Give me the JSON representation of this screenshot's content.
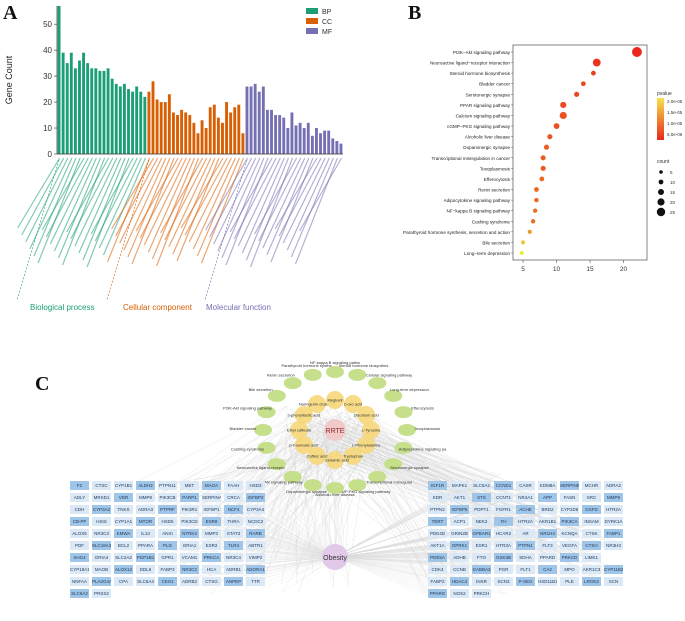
{
  "panels": {
    "a": "A",
    "b": "B",
    "c": "C"
  },
  "colors": {
    "bp": "#1b9e77",
    "cc": "#d95f02",
    "mf": "#7570b3",
    "compound": "#f6d77a",
    "pathway": "#c5df8a",
    "disease": "#e2c9ea",
    "gene_dark": "#9fc5e8",
    "gene_light": "#dbe9f7"
  },
  "chart_data": [
    {
      "type": "bar",
      "ylabel": "Gene Count",
      "ylim": [
        0,
        57
      ],
      "yticks": [
        0,
        10,
        20,
        30,
        40,
        50
      ],
      "legend_position": "top-right",
      "series": [
        {
          "name": "BP",
          "values": [
            57,
            39,
            35,
            39,
            33,
            36,
            39,
            35,
            33,
            33,
            32,
            32,
            33,
            29,
            27,
            26,
            27,
            25,
            24,
            26,
            24,
            22
          ]
        },
        {
          "name": "CC",
          "values": [
            24,
            28,
            21,
            20,
            20,
            23,
            16,
            15,
            17,
            16,
            15,
            12,
            8,
            13,
            10,
            18,
            19,
            14,
            12,
            20,
            16,
            18,
            19,
            8
          ]
        },
        {
          "name": "MF",
          "values": [
            26,
            26,
            27,
            24,
            26,
            17,
            17,
            15,
            15,
            14,
            10,
            16,
            11,
            12,
            10,
            12,
            7,
            10,
            8,
            9,
            9,
            6,
            5,
            4
          ]
        }
      ],
      "category_groups": [
        "Biological process",
        "Cellular component",
        "Molecular function"
      ]
    },
    {
      "type": "scatter",
      "x_ticks": [
        5,
        10,
        15,
        20
      ],
      "xlim": [
        3.5,
        23.5
      ],
      "categories": [
        "PI3K−Akt signaling pathway",
        "Neuroactive ligand−receptor interaction",
        "Steroid hormone biosynthesis",
        "Bladder cancer",
        "Serotonergic synapse",
        "PPAR signaling pathway",
        "Calcium signaling pathway",
        "cGMP−PKG signaling pathway",
        "Alcoholic liver disease",
        "Dopaminergic synapse",
        "Transcriptional misregulation in cancer",
        "Toxoplasmosis",
        "Efferocytosis",
        "Renin secretion",
        "Adipocytokine signaling pathway",
        "NF−kappa B signaling pathway",
        "Cushing syndrome",
        "Parathyroid hormone synthesis, secretion and action",
        "Bile secretion",
        "Long−term depression"
      ],
      "x": [
        22,
        16,
        15.5,
        14,
        13,
        11,
        11,
        10,
        9,
        8.5,
        8,
        8,
        7.8,
        7,
        7,
        6.8,
        6.5,
        6,
        5,
        4.8
      ],
      "size": [
        22,
        16,
        7,
        7,
        8,
        11,
        14,
        10,
        8,
        8,
        8,
        8,
        7,
        7,
        6,
        6,
        6,
        5,
        5,
        5
      ],
      "pvalue": [
        1e-06,
        2e-06,
        3e-06,
        4e-06,
        4e-06,
        4e-06,
        5e-06,
        5e-06,
        5e-06,
        6e-06,
        6e-06,
        6e-06,
        7e-06,
        7e-06,
        7e-06,
        8e-06,
        8e-06,
        1.2e-05,
        1.6e-05,
        2e-05
      ],
      "color_legend": {
        "title": "pvalue",
        "labels": [
          "2.0e-05",
          "1.5e-05",
          "1.0e-05",
          "5.0e-06"
        ]
      },
      "size_legend": {
        "title": "count",
        "labels": [
          "5",
          "10",
          "15",
          "20",
          "25"
        ]
      }
    }
  ],
  "panelA": {
    "legend": [
      {
        "key": "bp",
        "label": "BP"
      },
      {
        "key": "cc",
        "label": "CC"
      },
      {
        "key": "mf",
        "label": "MF"
      }
    ],
    "group_labels": [
      "Biological process",
      "Cellular component",
      "Molecular function"
    ]
  },
  "network": {
    "center_compound": "RRTE",
    "center_disease": "Obesity",
    "compounds": [
      "L-Tyrosine",
      "L-Phenylalanine",
      "Tryptophan",
      "L-Glutamic acid",
      "Caffeic acid",
      "p-Coumaric acid",
      "Ethyl caffeate",
      "3-phenyllactic acid",
      "Naringenin chalcone",
      "Megluidi",
      "2-oxo acid",
      "Disodium acid"
    ],
    "pathways": [
      "NF-kappa B signaling pathway",
      "Steroid hormone biosynthesis",
      "Cellular signaling pathway",
      "Long-term depression",
      "Efferocytosis",
      "Toxoplasmosis",
      "Adipocytokine signaling pathway",
      "Serotonergic synapse",
      "Transcriptional misregulation in cancer",
      "cGMP-PKG signaling pathway",
      "Alcoholic liver disease",
      "Dopaminergic synapse",
      "PPAR signaling pathway",
      "Neuroactive ligand-receptor interaction",
      "Cushing syndrome",
      "Bladder cancer",
      "PI3K-Akt signaling pathway",
      "Bile secretion",
      "Renin secretion",
      "Parathyroid hormone synthesis, secretion and action"
    ],
    "left_genes": [
      [
        "F2",
        "CTSC",
        "CYP1B1",
        "ALDH2",
        "PTPN11",
        "MET",
        "MAOA",
        "FAAH",
        "HSD3"
      ],
      [
        "ADLY",
        "MRSD1",
        "VDR",
        "MMP8",
        "PIK3CB",
        "PARP1",
        "SERPINA6",
        "CRCA",
        "IGFBP2"
      ],
      [
        "CDH",
        "CYP3A2",
        "TNKS",
        "ADRA3",
        "PTPRF",
        "PIK3R1",
        "IGFBP1",
        "NCF4",
        "CYP3A4"
      ],
      [
        "CB-PF",
        "HSIS",
        "CYP1A1",
        "MTOR",
        "HSD5",
        "PIK3CD",
        "ESR8",
        "THRA",
        "NCDC2"
      ],
      [
        "ALOX5",
        "NR3C3",
        "KMWA",
        "IL13",
        "ANXI",
        "NTRK3",
        "MMP3",
        "STAT3",
        "RARB"
      ],
      [
        "PDF",
        "SLC18A3",
        "BCL2",
        "PPARA",
        "PLG",
        "GRIA1",
        "ESR2",
        "TLR4",
        "ABTR1"
      ],
      [
        "SHG4",
        "GRIA4",
        "SLC2A2",
        "PGP1B1",
        "GPR1",
        "VCAM1",
        "PRKCA",
        "NR3C4",
        "VIMP2"
      ],
      [
        "CYP19A1",
        "MAOB",
        "ALOX12",
        "DDL6",
        "FABP3",
        "NR3C2",
        "HCA",
        "ADRB1",
        "ADORA1"
      ],
      [
        "NNFAA",
        "PLA2G4A",
        "CPA",
        "SLC6A4",
        "CES1",
        "ADRB2",
        "CTSG",
        "ANPEP",
        "TTR"
      ],
      [
        "SLC6A2",
        "PRSS2"
      ]
    ],
    "right_genes": [
      [
        "IGF1R",
        "MAPK1",
        "SLC5A2",
        "CCND1",
        "CASR",
        "KDM8A",
        "SERPINE1",
        "MCHR",
        "ADRA2"
      ],
      [
        "KDR",
        "AKT1",
        "STS",
        "CCNT1",
        "NR4A1",
        "APP",
        "FASN",
        "SRC",
        "MMP9"
      ],
      [
        "PTPN2",
        "IGFBP5",
        "PDPT1",
        "FGFR1",
        "ACHE",
        "BRD2",
        "CYP2D6",
        "GSFD",
        "HTR2A"
      ],
      [
        "TERT",
        "ACP1",
        "NEK2",
        "TH",
        "HTR2A",
        "AKR1B1",
        "PIK3CA",
        "INSAM",
        "DYRK1A"
      ],
      [
        "PDE4D",
        "GRIN2B",
        "GPBAR1",
        "HCAR2",
        "AR",
        "NR1H4",
        "KCNQA",
        "CTSK",
        "FABP1"
      ],
      [
        "AKT1A",
        "OPRK1",
        "ESR1",
        "HTR3A",
        "PTPN1",
        "FLT3",
        "VEGFA",
        "CTSH",
        "NR3H3"
      ],
      [
        "PDE5A",
        "ADHB",
        "FTO",
        "GSK3B",
        "SDHA",
        "PPARD",
        "PRKCD",
        "LIMK1"
      ],
      [
        "CDK4",
        "CCNB",
        "GABBA3",
        "PGR",
        "FLT1",
        "CA2",
        "MPO",
        "AKR1C3",
        "CYP11B2"
      ],
      [
        "FABP2",
        "HDAC4",
        "INSR",
        "SCN3",
        "P-SEG",
        "HSD11B1",
        "PLE",
        "LRGE2",
        "SCN"
      ],
      [
        "PPARG",
        "NOS2",
        "PRKCH"
      ]
    ]
  }
}
